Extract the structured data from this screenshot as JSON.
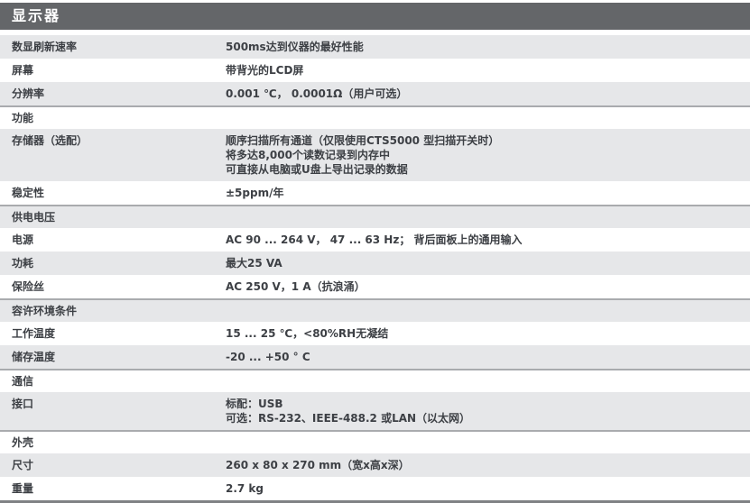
{
  "colors": {
    "header_bg": "#646669",
    "title_text": "#ffffff",
    "row_alt_bg": "#e6e7e9",
    "separator": "#a9abae",
    "bottom_border": "#7f8184",
    "text": "#3d4045"
  },
  "table": {
    "title": "显示器",
    "sections": [
      {
        "header": null,
        "rows": [
          {
            "label": "数显刷新速率",
            "value": [
              "500ms达到仪器的最好性能"
            ]
          },
          {
            "label": "屏幕",
            "value": [
              "带背光的LCD屏"
            ]
          },
          {
            "label": "分辨率",
            "value": [
              "0.001 ℃， 0.0001Ω（用户可选）"
            ]
          }
        ]
      },
      {
        "header": "功能",
        "rows": [
          {
            "label": "存储器（选配）",
            "value": [
              "顺序扫描所有通道（仅限使用CTS5000 型扫描开关时）",
              "将多达8,000个读数记录到内存中",
              "可直接从电脑或U盘上导出记录的数据"
            ]
          },
          {
            "label": "稳定性",
            "value": [
              "±5ppm/年"
            ]
          }
        ]
      },
      {
        "header": "供电电压",
        "rows": [
          {
            "label": "电源",
            "value": [
              "AC 90 ... 264 V， 47 ... 63 Hz； 背后面板上的通用输入"
            ]
          },
          {
            "label": "功耗",
            "value": [
              "最大25 VA"
            ]
          },
          {
            "label": "保险丝",
            "value": [
              "AC 250 V，1 A（抗浪涌）"
            ]
          }
        ]
      },
      {
        "header": "容许环境条件",
        "rows": [
          {
            "label": "工作温度",
            "value": [
              "15 ... 25 ℃，<80%RH无凝结"
            ]
          },
          {
            "label": "储存温度",
            "value": [
              "-20 ... +50 ° C"
            ]
          }
        ]
      },
      {
        "header": "通信",
        "rows": [
          {
            "label": "接口",
            "value": [
              "标配：USB",
              "可选：RS-232、IEEE-488.2 或LAN（以太网）"
            ]
          }
        ]
      },
      {
        "header": "外壳",
        "rows": [
          {
            "label": "尺寸",
            "value": [
              "260 x 80 x 270 mm（宽x高x深）"
            ]
          },
          {
            "label": "重量",
            "value": [
              "2.7 kg"
            ]
          }
        ]
      }
    ]
  }
}
